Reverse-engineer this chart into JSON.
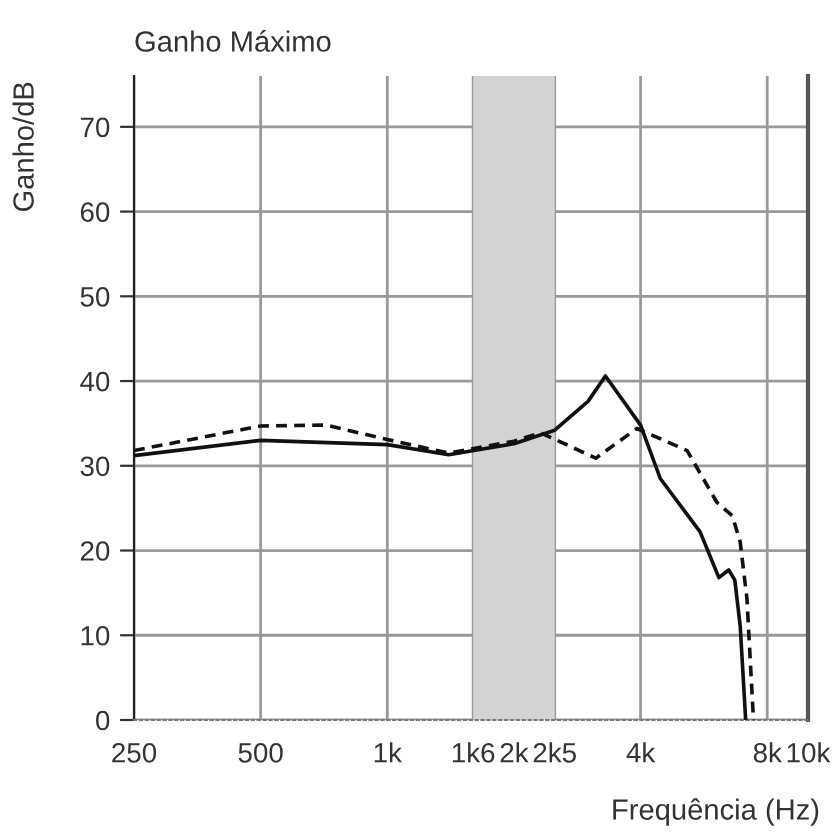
{
  "chart_data": {
    "type": "line",
    "title": "Ganho Máximo",
    "xlabel": "Frequência (Hz)",
    "ylabel": "Ganho/dB",
    "log": "x",
    "xlim": [
      250,
      10000
    ],
    "ylim": [
      0,
      76
    ],
    "xticks": [
      250,
      500,
      {
        "value": 1000,
        "label": "1k"
      },
      {
        "value": 1600,
        "label": "1k6"
      },
      {
        "value": 2000,
        "label": "2k"
      },
      {
        "value": 2500,
        "label": "2k5"
      },
      {
        "value": 4000,
        "label": "4k"
      },
      {
        "value": 8000,
        "label": "8k"
      },
      {
        "value": 10000,
        "label": "10k"
      }
    ],
    "yticks": [
      0,
      10,
      20,
      30,
      40,
      50,
      60,
      70
    ],
    "grid": true,
    "legend": false,
    "bands": [
      {
        "axis": "x",
        "from": 1600,
        "to": 2500,
        "color": "#d3d3d3"
      }
    ],
    "series": [
      {
        "color": "#111111",
        "line_style": "solid",
        "x": [
          250,
          500,
          1000,
          1400,
          2000,
          2500,
          3000,
          3300,
          4000,
          4455,
          5540,
          6140,
          6480,
          6700,
          6900,
          7110
        ],
        "values": [
          31.2,
          33.0,
          32.5,
          31.3,
          32.6,
          34.2,
          37.6,
          40.6,
          34.8,
          28.5,
          22.2,
          16.8,
          17.7,
          16.5,
          11.1,
          0
        ]
      },
      {
        "color": "#111111",
        "line_style": "dashed",
        "x": [
          250,
          500,
          717,
          1000,
          1400,
          2000,
          2310,
          3130,
          3920,
          5160,
          6070,
          6610,
          6900,
          7160,
          7420
        ],
        "values": [
          31.8,
          34.7,
          34.8,
          33.1,
          31.5,
          32.9,
          33.9,
          30.9,
          34.4,
          31.8,
          25.7,
          24.1,
          21.0,
          14.3,
          0
        ]
      }
    ]
  }
}
